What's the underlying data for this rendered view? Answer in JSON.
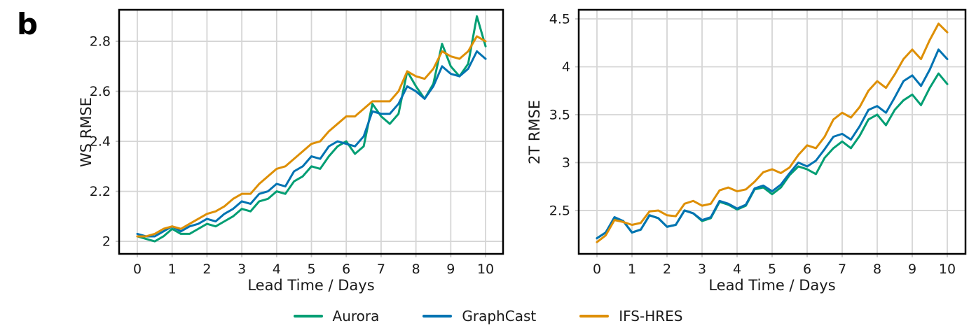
{
  "panel_label": "b",
  "legend": {
    "items": [
      {
        "label": "Aurora",
        "color": "#029E73"
      },
      {
        "label": "GraphCast",
        "color": "#0173B2"
      },
      {
        "label": "IFS-HRES",
        "color": "#DE8F05"
      }
    ]
  },
  "style": {
    "grid_color": "#d5d5d5",
    "frame_color": "#000000",
    "tick_color": "#c8c8c8",
    "text_color": "#1a1a1a",
    "line_width": 3
  },
  "chart_data": [
    {
      "id": "ws-rmse",
      "type": "line",
      "title": "",
      "xlabel": "Lead Time / Days",
      "ylabel": "WS RMSE",
      "grid": true,
      "legend_position": "below-figure",
      "xlim": [
        -0.523,
        10.502
      ],
      "ylim": [
        1.95,
        2.926
      ],
      "x_ticks": {
        "values": [
          0,
          1,
          2,
          3,
          4,
          5,
          6,
          7,
          8,
          9,
          10
        ],
        "labels": [
          "0",
          "1",
          "2",
          "3",
          "4",
          "5",
          "6",
          "7",
          "8",
          "9",
          "10"
        ]
      },
      "y_ticks": {
        "values": [
          2,
          2.2,
          2.4,
          2.6,
          2.8
        ],
        "labels": [
          "2",
          "2.2",
          "2.4",
          "2.6",
          "2.8"
        ]
      },
      "x": [
        0,
        0.25,
        0.5,
        0.75,
        1,
        1.25,
        1.5,
        1.75,
        2,
        2.25,
        2.5,
        2.75,
        3,
        3.25,
        3.5,
        3.75,
        4,
        4.25,
        4.5,
        4.75,
        5,
        5.25,
        5.5,
        5.75,
        6,
        6.25,
        6.5,
        6.75,
        7,
        7.25,
        7.5,
        7.75,
        8,
        8.25,
        8.5,
        8.75,
        9,
        9.25,
        9.5,
        9.75,
        10
      ],
      "series": [
        {
          "name": "Aurora",
          "color": "#029E73",
          "values": [
            2.02,
            2.01,
            2.0,
            2.02,
            2.05,
            2.03,
            2.03,
            2.05,
            2.07,
            2.06,
            2.08,
            2.1,
            2.13,
            2.12,
            2.16,
            2.17,
            2.2,
            2.19,
            2.24,
            2.26,
            2.3,
            2.29,
            2.34,
            2.38,
            2.4,
            2.35,
            2.38,
            2.55,
            2.5,
            2.47,
            2.51,
            2.68,
            2.62,
            2.57,
            2.63,
            2.79,
            2.7,
            2.66,
            2.71,
            2.9,
            2.78
          ]
        },
        {
          "name": "GraphCast",
          "color": "#0173B2",
          "values": [
            2.03,
            2.02,
            2.02,
            2.04,
            2.06,
            2.04,
            2.06,
            2.07,
            2.09,
            2.08,
            2.11,
            2.13,
            2.16,
            2.15,
            2.19,
            2.2,
            2.23,
            2.22,
            2.28,
            2.3,
            2.34,
            2.33,
            2.38,
            2.4,
            2.39,
            2.38,
            2.42,
            2.52,
            2.51,
            2.51,
            2.55,
            2.62,
            2.6,
            2.57,
            2.62,
            2.7,
            2.67,
            2.66,
            2.69,
            2.76,
            2.73
          ]
        },
        {
          "name": "IFS-HRES",
          "color": "#DE8F05",
          "values": [
            2.02,
            2.02,
            2.03,
            2.05,
            2.06,
            2.05,
            2.07,
            2.09,
            2.11,
            2.12,
            2.14,
            2.17,
            2.19,
            2.19,
            2.23,
            2.26,
            2.29,
            2.3,
            2.33,
            2.36,
            2.39,
            2.4,
            2.44,
            2.47,
            2.5,
            2.5,
            2.53,
            2.56,
            2.56,
            2.56,
            2.6,
            2.68,
            2.66,
            2.65,
            2.69,
            2.76,
            2.74,
            2.73,
            2.76,
            2.82,
            2.8
          ]
        }
      ]
    },
    {
      "id": "2t-rmse",
      "type": "line",
      "title": "",
      "xlabel": "Lead Time / Days",
      "ylabel": "2T RMSE",
      "grid": true,
      "legend_position": "below-figure",
      "xlim": [
        -0.52,
        10.52
      ],
      "ylim": [
        2.047,
        4.595
      ],
      "x_ticks": {
        "values": [
          0,
          1,
          2,
          3,
          4,
          5,
          6,
          7,
          8,
          9,
          10
        ],
        "labels": [
          "0",
          "1",
          "2",
          "3",
          "4",
          "5",
          "6",
          "7",
          "8",
          "9",
          "10"
        ]
      },
      "y_ticks": {
        "values": [
          2.5,
          3,
          3.5,
          4,
          4.5
        ],
        "labels": [
          "2.5",
          "3",
          "3.5",
          "4",
          "4.5"
        ]
      },
      "x": [
        0,
        0.25,
        0.5,
        0.75,
        1,
        1.25,
        1.5,
        1.75,
        2,
        2.25,
        2.5,
        2.75,
        3,
        3.25,
        3.5,
        3.75,
        4,
        4.25,
        4.5,
        4.75,
        5,
        5.25,
        5.5,
        5.75,
        6,
        6.25,
        6.5,
        6.75,
        7,
        7.25,
        7.5,
        7.75,
        8,
        8.25,
        8.5,
        8.75,
        9,
        9.25,
        9.5,
        9.75,
        10
      ],
      "series": [
        {
          "name": "Aurora",
          "color": "#029E73",
          "values": [
            2.21,
            2.27,
            2.42,
            2.39,
            2.27,
            2.3,
            2.45,
            2.42,
            2.33,
            2.35,
            2.5,
            2.47,
            2.39,
            2.42,
            2.59,
            2.56,
            2.51,
            2.55,
            2.72,
            2.74,
            2.67,
            2.74,
            2.87,
            2.96,
            2.93,
            2.88,
            3.05,
            3.15,
            3.22,
            3.15,
            3.28,
            3.45,
            3.5,
            3.39,
            3.55,
            3.65,
            3.71,
            3.6,
            3.78,
            3.93,
            3.82
          ]
        },
        {
          "name": "GraphCast",
          "color": "#0173B2",
          "values": [
            2.21,
            2.27,
            2.43,
            2.39,
            2.27,
            2.3,
            2.45,
            2.42,
            2.33,
            2.35,
            2.5,
            2.47,
            2.4,
            2.43,
            2.6,
            2.57,
            2.52,
            2.56,
            2.73,
            2.76,
            2.7,
            2.77,
            2.89,
            3.0,
            2.96,
            3.02,
            3.14,
            3.27,
            3.3,
            3.24,
            3.38,
            3.55,
            3.59,
            3.52,
            3.68,
            3.85,
            3.91,
            3.8,
            3.97,
            4.18,
            4.08
          ]
        },
        {
          "name": "IFS-HRES",
          "color": "#DE8F05",
          "values": [
            2.17,
            2.24,
            2.4,
            2.38,
            2.35,
            2.37,
            2.49,
            2.5,
            2.45,
            2.44,
            2.57,
            2.6,
            2.55,
            2.57,
            2.71,
            2.74,
            2.7,
            2.72,
            2.8,
            2.9,
            2.93,
            2.89,
            2.95,
            3.08,
            3.18,
            3.15,
            3.27,
            3.45,
            3.52,
            3.47,
            3.58,
            3.75,
            3.85,
            3.78,
            3.92,
            4.08,
            4.18,
            4.08,
            4.28,
            4.45,
            4.36
          ]
        }
      ]
    }
  ]
}
